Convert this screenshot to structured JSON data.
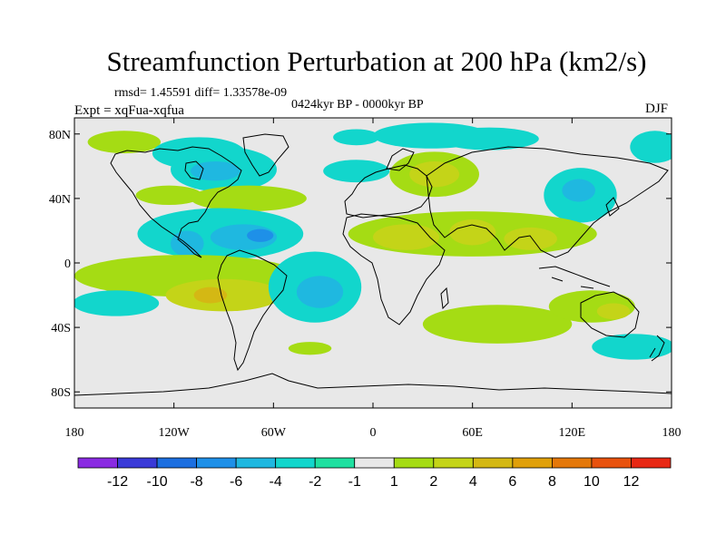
{
  "chart_data": {
    "type": "contour-map",
    "title": "Streamfunction Perturbation at 200 hPa (km2/s)",
    "stats": "rmsd= 1.45591 diff= 1.33578e-09",
    "experiment": "Expt = xqFua-xqfua",
    "period": "0424kyr BP - 0000kyr BP",
    "season": "DJF",
    "xlim": [
      -180,
      180
    ],
    "ylim": [
      -90,
      90
    ],
    "x_ticks": [
      {
        "value": -180,
        "label": "180"
      },
      {
        "value": -120,
        "label": "120W"
      },
      {
        "value": -60,
        "label": "60W"
      },
      {
        "value": 0,
        "label": "0"
      },
      {
        "value": 60,
        "label": "60E"
      },
      {
        "value": 120,
        "label": "120E"
      },
      {
        "value": 180,
        "label": "180"
      }
    ],
    "y_ticks": [
      {
        "value": 80,
        "label": "80N"
      },
      {
        "value": 40,
        "label": "40N"
      },
      {
        "value": 0,
        "label": "0"
      },
      {
        "value": -40,
        "label": "40S"
      },
      {
        "value": -80,
        "label": "80S"
      }
    ],
    "colorbar": {
      "colors": [
        "#8a2be2",
        "#3a3ad8",
        "#1c6fe0",
        "#1e90e8",
        "#1fb8e0",
        "#12d6cc",
        "#1fe0a0",
        "#e8e8e8",
        "#a5dc14",
        "#c4d418",
        "#d4b814",
        "#e0a00a",
        "#e4780a",
        "#e8520e",
        "#e82814"
      ],
      "labels": [
        "-12",
        "-10",
        "-8",
        "-6",
        "-4",
        "-2",
        "-1",
        "1",
        "2",
        "4",
        "6",
        "8",
        "10",
        "12"
      ]
    },
    "anomalies": [
      {
        "lon": -150,
        "lat": 75,
        "rx": 22,
        "ry": 7,
        "level": 1
      },
      {
        "lon": -105,
        "lat": 68,
        "rx": 28,
        "ry": 10,
        "level": -2
      },
      {
        "lon": -90,
        "lat": 58,
        "rx": 32,
        "ry": 14,
        "level": -2
      },
      {
        "lon": -95,
        "lat": 57,
        "rx": 15,
        "ry": 6,
        "level": -4
      },
      {
        "lon": -123,
        "lat": 42,
        "rx": 20,
        "ry": 6,
        "level": 1
      },
      {
        "lon": -75,
        "lat": 40,
        "rx": 35,
        "ry": 8,
        "level": 1
      },
      {
        "lon": -10,
        "lat": 78,
        "rx": 14,
        "ry": 5,
        "level": -2
      },
      {
        "lon": -10,
        "lat": 57,
        "rx": 20,
        "ry": 7,
        "level": -2
      },
      {
        "lon": 35,
        "lat": 79,
        "rx": 35,
        "ry": 8,
        "level": -2
      },
      {
        "lon": 70,
        "lat": 77,
        "rx": 30,
        "ry": 7,
        "level": -2
      },
      {
        "lon": 170,
        "lat": 72,
        "rx": 15,
        "ry": 10,
        "level": -2
      },
      {
        "lon": 37,
        "lat": 55,
        "rx": 27,
        "ry": 14,
        "level": 1
      },
      {
        "lon": 37,
        "lat": 55,
        "rx": 15,
        "ry": 8,
        "level": 2
      },
      {
        "lon": 125,
        "lat": 42,
        "rx": 22,
        "ry": 17,
        "level": -2
      },
      {
        "lon": 124,
        "lat": 45,
        "rx": 10,
        "ry": 7,
        "level": -4
      },
      {
        "lon": 60,
        "lat": 18,
        "rx": 75,
        "ry": 14,
        "level": 1
      },
      {
        "lon": 20,
        "lat": 16,
        "rx": 20,
        "ry": 8,
        "level": 2
      },
      {
        "lon": 60,
        "lat": 19,
        "rx": 14,
        "ry": 8,
        "level": 2
      },
      {
        "lon": 95,
        "lat": 15,
        "rx": 16,
        "ry": 7,
        "level": 2
      },
      {
        "lon": -92,
        "lat": 18,
        "rx": 50,
        "ry": 16,
        "level": -2
      },
      {
        "lon": -78,
        "lat": 16,
        "rx": 20,
        "ry": 8,
        "level": -4
      },
      {
        "lon": -68,
        "lat": 17,
        "rx": 8,
        "ry": 4,
        "level": -6
      },
      {
        "lon": -112,
        "lat": 12,
        "rx": 10,
        "ry": 8,
        "level": -4
      },
      {
        "lon": -112,
        "lat": -8,
        "rx": 68,
        "ry": 13,
        "level": 1
      },
      {
        "lon": -90,
        "lat": -20,
        "rx": 35,
        "ry": 10,
        "level": 2
      },
      {
        "lon": -98,
        "lat": -20,
        "rx": 10,
        "ry": 5,
        "level": 4
      },
      {
        "lon": -155,
        "lat": -25,
        "rx": 26,
        "ry": 8,
        "level": -2
      },
      {
        "lon": -35,
        "lat": -15,
        "rx": 28,
        "ry": 22,
        "level": -2
      },
      {
        "lon": -32,
        "lat": -18,
        "rx": 14,
        "ry": 10,
        "level": -4
      },
      {
        "lon": -38,
        "lat": -53,
        "rx": 13,
        "ry": 4,
        "level": 1
      },
      {
        "lon": 75,
        "lat": -38,
        "rx": 45,
        "ry": 12,
        "level": 1
      },
      {
        "lon": 132,
        "lat": -27,
        "rx": 26,
        "ry": 10,
        "level": 1
      },
      {
        "lon": 145,
        "lat": -30,
        "rx": 10,
        "ry": 5,
        "level": 2
      },
      {
        "lon": 157,
        "lat": -52,
        "rx": 25,
        "ry": 8,
        "level": -2
      }
    ]
  }
}
